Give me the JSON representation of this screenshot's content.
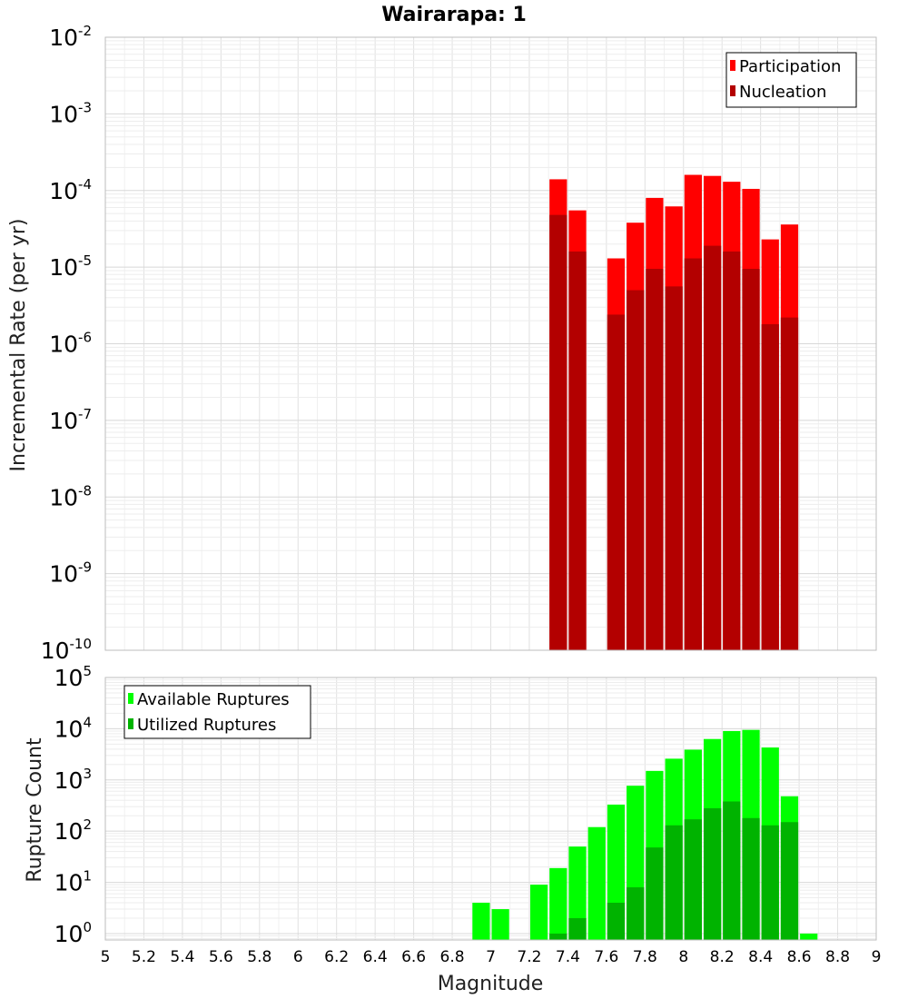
{
  "title": "Wairarapa: 1",
  "chart_data": [
    {
      "type": "bar",
      "ylabel": "Incremental Rate (per yr)",
      "xlabel": "",
      "yscale": "log",
      "ylim": [
        1e-10,
        0.01
      ],
      "xlim": [
        5,
        9
      ],
      "grid": true,
      "legend": "top-right",
      "ytick_exponents": [
        -10,
        -9,
        -8,
        -7,
        -6,
        -5,
        -4,
        -3,
        -2
      ],
      "x": [
        7.35,
        7.45,
        7.65,
        7.75,
        7.85,
        7.95,
        8.05,
        8.15,
        8.25,
        8.35,
        8.45,
        8.55
      ],
      "series": [
        {
          "name": "Participation",
          "color": "#ff0000",
          "values": [
            0.00014,
            5.5e-05,
            1.3e-05,
            3.8e-05,
            8e-05,
            6.2e-05,
            0.00016,
            0.000155,
            0.00013,
            0.000105,
            2.3e-05,
            3.6e-05
          ]
        },
        {
          "name": "Nucleation",
          "color": "#b30000",
          "values": [
            4.8e-05,
            1.6e-05,
            2.4e-06,
            5e-06,
            9.5e-06,
            5.6e-06,
            1.3e-05,
            1.9e-05,
            1.6e-05,
            9.5e-06,
            1.8e-06,
            2.2e-06
          ]
        }
      ]
    },
    {
      "type": "bar",
      "ylabel": "Rupture Count",
      "xlabel": "Magnitude",
      "yscale": "log",
      "ylim": [
        0.75,
        100000.0
      ],
      "xlim": [
        5,
        9
      ],
      "grid": true,
      "legend": "top-left",
      "ytick_exponents": [
        0,
        1,
        2,
        3,
        4,
        5
      ],
      "xticks": [
        "5",
        "5.2",
        "5.4",
        "5.6",
        "5.8",
        "6",
        "6.2",
        "6.4",
        "6.6",
        "6.8",
        "7",
        "7.2",
        "7.4",
        "7.6",
        "7.8",
        "8",
        "8.2",
        "8.4",
        "8.6",
        "8.8",
        "9"
      ],
      "x": [
        6.95,
        7.05,
        7.25,
        7.35,
        7.45,
        7.55,
        7.65,
        7.75,
        7.85,
        7.95,
        8.05,
        8.15,
        8.25,
        8.35,
        8.45,
        8.55,
        8.65
      ],
      "series": [
        {
          "name": "Available Ruptures",
          "color": "#00ff00",
          "values": [
            4,
            3,
            9,
            19,
            50,
            120,
            330,
            770,
            1500,
            2600,
            3900,
            6300,
            9000,
            9500,
            4300,
            480,
            1
          ]
        },
        {
          "name": "Utilized Ruptures",
          "color": "#00b300",
          "values": [
            0,
            0,
            0,
            1,
            2,
            0,
            4,
            8,
            48,
            130,
            170,
            280,
            380,
            180,
            130,
            150,
            0
          ]
        }
      ]
    }
  ]
}
